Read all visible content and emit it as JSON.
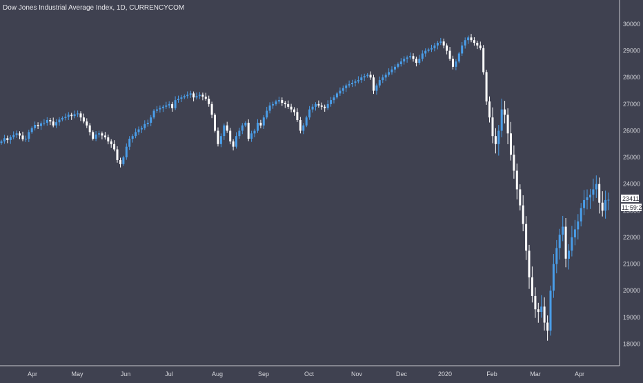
{
  "header": {
    "title": "Dow Jones Industrial Average Index, 1D, CURRENCYCOM"
  },
  "price_axis": {
    "last_price_tag": "23411",
    "countdown_tag": "11:59:20"
  },
  "colors": {
    "background": "#3f4150",
    "up_candle": "#4a9de8",
    "down_candle": "#ffffff",
    "axis_text": "#d6d7dc",
    "axis_line": "#c8c9ce"
  },
  "chart_data": {
    "type": "candlestick",
    "title": "Dow Jones Industrial Average Index, 1D, CURRENCYCOM",
    "ylim": [
      17000,
      30500
    ],
    "y_ticks": [
      18000,
      19000,
      20000,
      21000,
      22000,
      23000,
      24000,
      25000,
      26000,
      27000,
      28000,
      29000,
      30000
    ],
    "x_tick_labels": [
      "Apr",
      "May",
      "Jun",
      "Jul",
      "Aug",
      "Sep",
      "Oct",
      "Nov",
      "Dec",
      "2020",
      "Feb",
      "Mar",
      "Apr"
    ],
    "grid": false,
    "last_value": 23411,
    "closes": [
      25600,
      25720,
      25650,
      25760,
      25840,
      25900,
      25820,
      25680,
      25700,
      25950,
      26100,
      26220,
      26180,
      26280,
      26300,
      26400,
      26350,
      26200,
      26320,
      26420,
      26480,
      26520,
      26600,
      26550,
      26620,
      26650,
      26500,
      26350,
      26200,
      25950,
      25700,
      25860,
      25900,
      25820,
      25750,
      25600,
      25500,
      25300,
      24900,
      24750,
      25000,
      25400,
      25700,
      25800,
      25950,
      26050,
      26100,
      26250,
      26300,
      26500,
      26750,
      26800,
      26850,
      26900,
      26950,
      27000,
      26850,
      27150,
      27200,
      27250,
      27300,
      27350,
      27400,
      27250,
      27300,
      27350,
      27280,
      27200,
      27000,
      26600,
      26000,
      25500,
      25800,
      26200,
      26000,
      25600,
      25400,
      25800,
      26000,
      26200,
      26300,
      25700,
      25900,
      26000,
      26300,
      26200,
      26500,
      26750,
      26950,
      27000,
      27100,
      27150,
      27050,
      27000,
      26900,
      26800,
      26700,
      26400,
      26000,
      26200,
      26500,
      26800,
      26900,
      27000,
      26950,
      26900,
      26850,
      27000,
      27150,
      27250,
      27400,
      27500,
      27600,
      27700,
      27750,
      27800,
      27850,
      27900,
      28000,
      28050,
      28100,
      28000,
      27500,
      27700,
      27900,
      28000,
      28100,
      28200,
      28300,
      28400,
      28500,
      28600,
      28700,
      28750,
      28800,
      28700,
      28550,
      28700,
      28900,
      29000,
      29050,
      29100,
      29200,
      29300,
      29350,
      29200,
      29000,
      28700,
      28400,
      28600,
      28900,
      29200,
      29400,
      29500,
      29400,
      29300,
      29200,
      29100,
      28200,
      27100,
      26500,
      25800,
      25500,
      26000,
      26800,
      26600,
      25900,
      25100,
      24500,
      23800,
      23200,
      22500,
      21500,
      20500,
      19800,
      19300,
      19200,
      19400,
      18800,
      18500,
      20000,
      21000,
      21600,
      22100,
      22400,
      21200,
      21500,
      22000,
      22300,
      22600,
      23100,
      23400,
      23500,
      23600,
      23800,
      24000,
      23300,
      23000,
      23400,
      23411
    ],
    "wick_spread": 180,
    "volatile_start_index": 160
  }
}
